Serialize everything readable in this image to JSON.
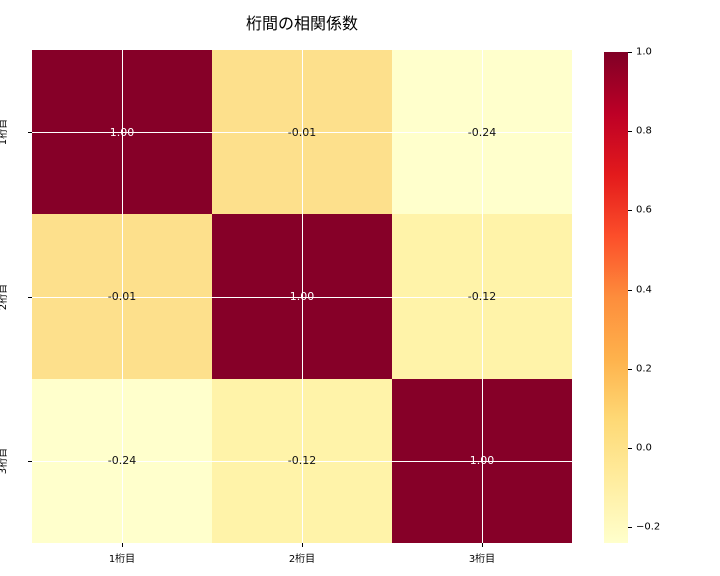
{
  "title": "桁間の相関係数",
  "chart_data": {
    "type": "heatmap",
    "title": "桁間の相関係数",
    "x_categories": [
      "1桁目",
      "2桁目",
      "3桁目"
    ],
    "y_categories": [
      "1桁目",
      "2桁目",
      "3桁目"
    ],
    "matrix": [
      [
        1.0,
        -0.01,
        -0.24
      ],
      [
        -0.01,
        1.0,
        -0.12
      ],
      [
        -0.24,
        -0.12,
        1.0
      ]
    ],
    "annotations": [
      [
        "1.00",
        "-0.01",
        "-0.24"
      ],
      [
        "-0.01",
        "1.00",
        "-0.12"
      ],
      [
        "-0.24",
        "-0.12",
        "1.00"
      ]
    ],
    "cell_colors": [
      [
        "#860028",
        "#fde08c",
        "#ffffcc"
      ],
      [
        "#fde08c",
        "#860028",
        "#fff3a9"
      ],
      [
        "#ffffcc",
        "#fff3a9",
        "#860028"
      ]
    ],
    "text_colors": [
      [
        "#ffffff",
        "#141414",
        "#141414"
      ],
      [
        "#141414",
        "#ffffff",
        "#141414"
      ],
      [
        "#141414",
        "#141414",
        "#ffffff"
      ]
    ],
    "colormap": "YlOrRd",
    "grid": true,
    "gridline_color": "#ffffff",
    "colorbar": {
      "vmin": -0.24,
      "vmax": 1.0,
      "tick_labels": [
        "1.0",
        "0.8",
        "0.6",
        "0.4",
        "0.2",
        "0.0",
        "−0.2"
      ],
      "tick_values": [
        1.0,
        0.8,
        0.6,
        0.4,
        0.2,
        0.0,
        -0.2
      ],
      "gradient_stops_bottom_to_top": [
        "#ffffcc",
        "#ffeda0",
        "#fed976",
        "#feb24c",
        "#fd8d3c",
        "#fc4e2a",
        "#e31a1c",
        "#bd0026",
        "#800026"
      ]
    }
  }
}
